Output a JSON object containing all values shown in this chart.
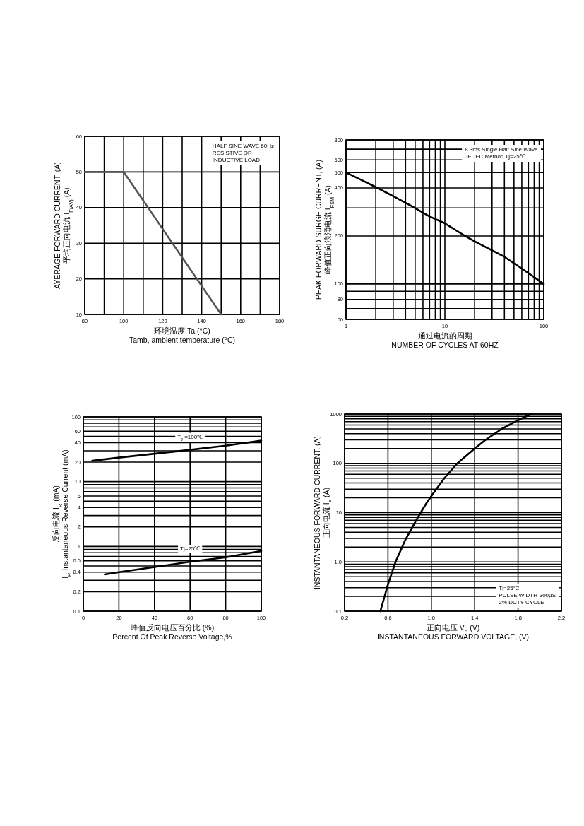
{
  "chart_data": [
    {
      "type": "line",
      "ylabel": "AYERAGE FORWARD CURRENT, (A)\n平均正向电流    I$_{F(AV)}$  (A)",
      "xlabel": "环境温度  Ta (°C)\nTamb, ambient temperature (°C)",
      "annotations": [
        "HALF SINE WAVE 60Hz",
        "RESISTIVE OR",
        "INDUCTIVE LOAD"
      ],
      "xlim": [
        80,
        180
      ],
      "xticks": [
        80,
        {
          "value": 90,
          "label": null
        },
        100,
        {
          "value": 110,
          "label": null
        },
        120,
        {
          "value": 130,
          "label": null
        },
        140,
        {
          "value": 150,
          "label": null
        },
        160,
        {
          "value": 170,
          "label": null
        },
        180
      ],
      "ylim": [
        10,
        60
      ],
      "yticks": [
        10,
        20,
        30,
        40,
        50,
        60
      ],
      "grid": true,
      "series": [
        {
          "color": "#555555",
          "x": [
            80,
            100,
            150
          ],
          "values": [
            50,
            50,
            10
          ]
        }
      ]
    },
    {
      "type": "line",
      "ylabel": "PEAK FORWARD SURGE CURRENT, (A)\n峰值正向浪涌电流  I$_{FSM}$ (A)",
      "xlabel": "通过电流的周期\nNUMBER OF CYCLES AT 60HZ",
      "annotations": [
        "8.3ms Single Half Sine Wave",
        "JEDEC Method  Tj=25℃"
      ],
      "log": "xy",
      "xlim": [
        1,
        100
      ],
      "xticks": [
        1,
        {
          "value": 2,
          "label": null
        },
        {
          "value": 3,
          "label": null
        },
        {
          "value": 4,
          "label": null
        },
        {
          "value": 5,
          "label": null
        },
        {
          "value": 6,
          "label": null
        },
        {
          "value": 7,
          "label": null
        },
        {
          "value": 8,
          "label": null
        },
        {
          "value": 9,
          "label": null
        },
        10,
        {
          "value": 20,
          "label": null
        },
        {
          "value": 30,
          "label": null
        },
        {
          "value": 40,
          "label": null
        },
        {
          "value": 50,
          "label": null
        },
        {
          "value": 60,
          "label": null
        },
        {
          "value": 70,
          "label": null
        },
        {
          "value": 80,
          "label": null
        },
        {
          "value": 90,
          "label": null
        },
        100
      ],
      "ylim": [
        60,
        800
      ],
      "yticks": [
        60,
        {
          "value": 70,
          "label": null
        },
        80,
        {
          "value": 90,
          "label": null
        },
        100,
        200,
        {
          "value": 300,
          "label": null
        },
        400,
        500,
        600,
        {
          "value": 700,
          "label": null
        },
        800
      ],
      "grid": true,
      "series": [
        {
          "color": "#000000",
          "x": [
            1,
            2,
            3,
            4.5,
            7,
            10,
            15,
            20,
            40,
            60,
            100
          ],
          "values": [
            500,
            405,
            355,
            310,
            265,
            240,
            205,
            185,
            148,
            125,
            100
          ]
        }
      ]
    },
    {
      "type": "line",
      "ylabel": "反向电流  I$_{R}$ (mA)\nI$_{R}$ Instantaneous Reverse Current (mA)",
      "xlabel": "峰值反向电压百分比 (%)\nPercent  Of Peak Reverse Voltage,%",
      "log": "y",
      "xlim": [
        0,
        100
      ],
      "xticks": [
        0,
        20,
        40,
        60,
        80,
        100
      ],
      "ylim": [
        0.1,
        100
      ],
      "yticks": [
        0.1,
        0.2,
        {
          "value": 0.3,
          "label": null
        },
        0.4,
        {
          "value": 0.5,
          "label": null
        },
        0.6,
        {
          "value": 0.7,
          "label": null
        },
        {
          "value": 0.8,
          "label": null
        },
        {
          "value": 0.9,
          "label": null
        },
        1,
        2,
        {
          "value": 3,
          "label": null
        },
        4,
        {
          "value": 5,
          "label": null
        },
        6,
        {
          "value": 7,
          "label": null
        },
        {
          "value": 8,
          "label": null
        },
        {
          "value": 9,
          "label": null
        },
        10,
        20,
        {
          "value": 30,
          "label": null
        },
        40,
        {
          "value": 50,
          "label": null
        },
        60,
        {
          "value": 70,
          "label": null
        },
        {
          "value": 80,
          "label": null
        },
        {
          "value": 90,
          "label": null
        },
        100
      ],
      "grid": true,
      "series": [
        {
          "name": "T$_{J}$ =100℃",
          "color": "#000000",
          "x": [
            5,
            20,
            40,
            60,
            80,
            100
          ],
          "values": [
            21,
            23.5,
            27,
            31,
            36,
            43
          ]
        },
        {
          "name": "Tj=25℃",
          "color": "#000000",
          "x": [
            12,
            20,
            40,
            60,
            80,
            100
          ],
          "values": [
            0.37,
            0.4,
            0.48,
            0.58,
            0.68,
            0.85
          ]
        }
      ]
    },
    {
      "type": "line",
      "ylabel": "INSTANTANEOUS FORWARD CURRENT, (A)\n正向电流   I$_{F}$ (A)",
      "xlabel": "正向电压   V$_{F}$ (V)\nINSTANTANEOUS FORWARD VOLTAGE, (V)",
      "annotations": [
        "Tj=25°C",
        "PULSE WIDTH-300μS",
        "2% DUTY CYCLE"
      ],
      "log": "y",
      "xlim": [
        0.2,
        2.2
      ],
      "xticks": [
        0.2,
        0.6,
        {
          "value": 1,
          "label": "1.0"
        },
        1.4,
        1.8,
        2.2
      ],
      "ylim": [
        0.1,
        1000
      ],
      "yticks": [
        0.1,
        {
          "value": 0.2,
          "label": null
        },
        {
          "value": 0.3,
          "label": null
        },
        {
          "value": 0.4,
          "label": null
        },
        {
          "value": 0.5,
          "label": null
        },
        {
          "value": 0.6,
          "label": null
        },
        {
          "value": 0.7,
          "label": null
        },
        {
          "value": 0.8,
          "label": null
        },
        {
          "value": 0.9,
          "label": null
        },
        {
          "value": 1,
          "label": "1.0"
        },
        {
          "value": 2,
          "label": null
        },
        {
          "value": 3,
          "label": null
        },
        {
          "value": 4,
          "label": null
        },
        {
          "value": 5,
          "label": null
        },
        {
          "value": 6,
          "label": null
        },
        {
          "value": 7,
          "label": null
        },
        {
          "value": 8,
          "label": null
        },
        {
          "value": 9,
          "label": null
        },
        10,
        {
          "value": 20,
          "label": null
        },
        {
          "value": 30,
          "label": null
        },
        {
          "value": 40,
          "label": null
        },
        {
          "value": 50,
          "label": null
        },
        {
          "value": 60,
          "label": null
        },
        {
          "value": 70,
          "label": null
        },
        {
          "value": 80,
          "label": null
        },
        {
          "value": 90,
          "label": null
        },
        100,
        {
          "value": 200,
          "label": null
        },
        {
          "value": 300,
          "label": null
        },
        {
          "value": 400,
          "label": null
        },
        {
          "value": 500,
          "label": null
        },
        {
          "value": 600,
          "label": null
        },
        {
          "value": 700,
          "label": null
        },
        {
          "value": 800,
          "label": null
        },
        {
          "value": 900,
          "label": null
        },
        1000
      ],
      "grid": true,
      "series": [
        {
          "color": "#000000",
          "x": [
            0.53,
            0.6,
            0.67,
            0.76,
            0.86,
            0.95,
            1.02,
            1.12,
            1.24,
            1.4,
            1.5,
            1.65,
            1.8,
            1.92
          ],
          "values": [
            0.1,
            0.35,
            1.0,
            2.8,
            7,
            15,
            25,
            50,
            100,
            200,
            300,
            500,
            750,
            1000
          ]
        }
      ]
    }
  ]
}
